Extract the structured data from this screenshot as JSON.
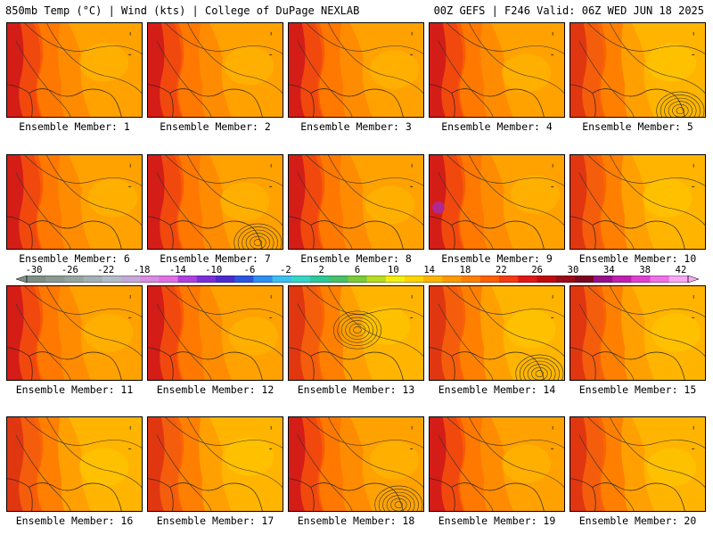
{
  "header": {
    "left_title": "850mb Temp (°C) | Wind (kts) | College of DuPage NEXLAB",
    "right_title": "00Z GEFS | F246 Valid: 06Z WED JUN 18 2025"
  },
  "panels": [
    {
      "label": "Ensemble Member: 1",
      "style": "hot",
      "lows": []
    },
    {
      "label": "Ensemble Member: 2",
      "style": "hot",
      "lows": []
    },
    {
      "label": "Ensemble Member: 3",
      "style": "hot",
      "lows": []
    },
    {
      "label": "Ensemble Member: 4",
      "style": "hot",
      "lows": []
    },
    {
      "label": "Ensemble Member: 5",
      "style": "warm",
      "lows": [
        "bottom-right"
      ]
    },
    {
      "label": "Ensemble Member: 6",
      "style": "hot",
      "lows": []
    },
    {
      "label": "Ensemble Member: 7",
      "style": "hot",
      "lows": [
        "bottom-right"
      ]
    },
    {
      "label": "Ensemble Member: 8",
      "style": "hot",
      "lows": []
    },
    {
      "label": "Ensemble Member: 9",
      "style": "hot",
      "lows": []
    },
    {
      "label": "Ensemble Member: 10",
      "style": "warm",
      "lows": []
    },
    {
      "label": "Ensemble Member: 11",
      "style": "hot",
      "lows": []
    },
    {
      "label": "Ensemble Member: 12",
      "style": "hot",
      "lows": []
    },
    {
      "label": "Ensemble Member: 13",
      "style": "warm",
      "lows": [
        "center"
      ]
    },
    {
      "label": "Ensemble Member: 14",
      "style": "warm",
      "lows": [
        "bottom-right"
      ]
    },
    {
      "label": "Ensemble Member: 15",
      "style": "warm",
      "lows": []
    },
    {
      "label": "Ensemble Member: 16",
      "style": "warm",
      "lows": []
    },
    {
      "label": "Ensemble Member: 17",
      "style": "warm",
      "lows": []
    },
    {
      "label": "Ensemble Member: 18",
      "style": "hot",
      "lows": [
        "bottom-right"
      ]
    },
    {
      "label": "Ensemble Member: 19",
      "style": "hot",
      "lows": []
    },
    {
      "label": "Ensemble Member: 20",
      "style": "warm",
      "lows": []
    }
  ],
  "colorbar": {
    "labels": [
      "-30",
      "-26",
      "-22",
      "-18",
      "-14",
      "-10",
      "-6",
      "-2",
      "2",
      "6",
      "10",
      "14",
      "18",
      "22",
      "26",
      "30",
      "34",
      "38",
      "42"
    ],
    "colors": [
      "#7f8f86",
      "#8b9a93",
      "#98a59f",
      "#a3b0b4",
      "#b4bcc9",
      "#c6a9d8",
      "#d98ce0",
      "#e070e6",
      "#b040e0",
      "#7a2fd8",
      "#4b2bd0",
      "#2a55e0",
      "#2f8ff0",
      "#3cc0f0",
      "#35d6c8",
      "#2fc89a",
      "#49c06a",
      "#7ccb3a",
      "#b8dc20",
      "#f2ee10",
      "#ffd400",
      "#ffb600",
      "#ff9a00",
      "#ff8000",
      "#ff6000",
      "#f53a10",
      "#e01818",
      "#c00a10",
      "#9a0a18",
      "#7c0620",
      "#96108a",
      "#c020b0",
      "#e040d0",
      "#f070e8",
      "#f8a8f4"
    ]
  }
}
